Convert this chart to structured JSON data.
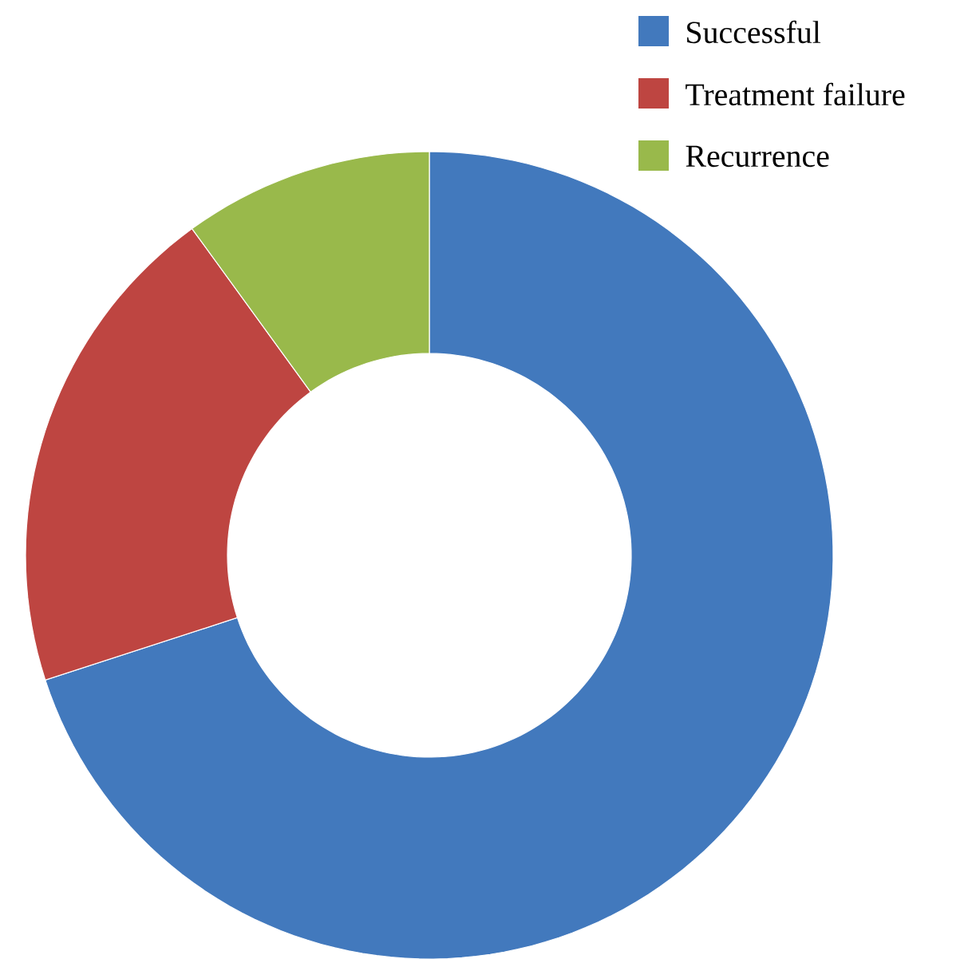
{
  "chart_data": {
    "type": "donut",
    "categories": [
      "Successful",
      "Treatment failure",
      "Recurrence"
    ],
    "values": [
      70,
      20,
      10
    ],
    "colors": [
      "#4279bd",
      "#be4541",
      "#99b94b"
    ],
    "legend": "top right"
  }
}
